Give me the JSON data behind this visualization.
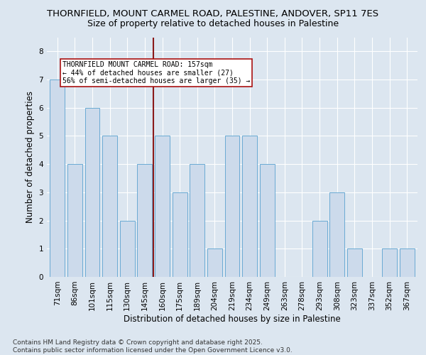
{
  "title_line1": "THORNFIELD, MOUNT CARMEL ROAD, PALESTINE, ANDOVER, SP11 7ES",
  "title_line2": "Size of property relative to detached houses in Palestine",
  "xlabel": "Distribution of detached houses by size in Palestine",
  "ylabel": "Number of detached properties",
  "categories": [
    "71sqm",
    "86sqm",
    "101sqm",
    "115sqm",
    "130sqm",
    "145sqm",
    "160sqm",
    "175sqm",
    "189sqm",
    "204sqm",
    "219sqm",
    "234sqm",
    "249sqm",
    "263sqm",
    "278sqm",
    "293sqm",
    "308sqm",
    "323sqm",
    "337sqm",
    "352sqm",
    "367sqm"
  ],
  "values": [
    7,
    4,
    6,
    5,
    2,
    4,
    5,
    3,
    4,
    1,
    5,
    5,
    4,
    0,
    0,
    2,
    3,
    1,
    0,
    1,
    1
  ],
  "bar_color": "#ccdaeb",
  "bar_edge_color": "#6aaad4",
  "background_color": "#dce6f0",
  "grid_color": "#ffffff",
  "vline_x_index": 6,
  "vline_color": "#8b1a1a",
  "annotation_text": "THORNFIELD MOUNT CARMEL ROAD: 157sqm\n← 44% of detached houses are smaller (27)\n56% of semi-detached houses are larger (35) →",
  "annotation_box_color": "#ffffff",
  "annotation_box_edge": "#aa1111",
  "ylim": [
    0,
    8.5
  ],
  "yticks": [
    0,
    1,
    2,
    3,
    4,
    5,
    6,
    7,
    8
  ],
  "footer": "Contains HM Land Registry data © Crown copyright and database right 2025.\nContains public sector information licensed under the Open Government Licence v3.0.",
  "title_fontsize": 9.5,
  "subtitle_fontsize": 9,
  "label_fontsize": 8.5,
  "tick_fontsize": 7.5,
  "footer_fontsize": 6.5
}
